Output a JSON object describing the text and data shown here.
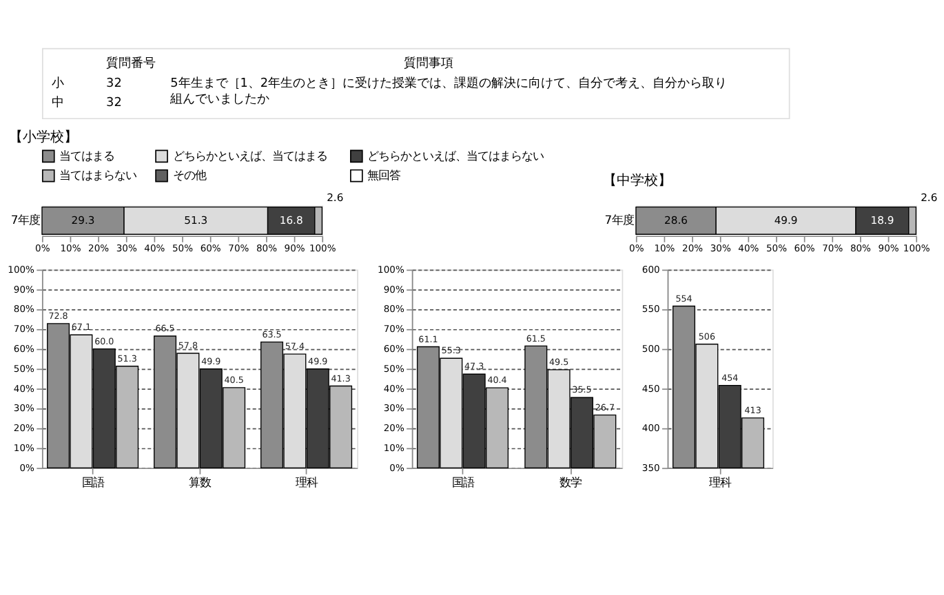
{
  "chart_data": [
    {
      "type": "other",
      "annotations": [
        "質問番号",
        "質問事項",
        "小",
        "32",
        "中",
        "32",
        "5年生まで［1、2年生のとき］に受けた授業では、課題の解決に向けて、自分で考え、自分から取り組んでいましたか"
      ]
    },
    {
      "type": "bar",
      "orientation": "horizontal",
      "stacked": true,
      "title": "【小学校】",
      "categories": [
        "7年度"
      ],
      "legend": "top",
      "data_labels": true,
      "series": [
        {
          "name": "当てはまる",
          "color": "#8c8c8c",
          "values": [
            29.3
          ]
        },
        {
          "name": "どちらかといえば、当てはまる",
          "color": "#dcdcdc",
          "values": [
            51.3
          ]
        },
        {
          "name": "どちらかといえば、当てはまらない",
          "color": "#404040",
          "values": [
            16.8
          ]
        },
        {
          "name": "当てはまらない",
          "color": "#b8b8b8",
          "values": [
            2.6
          ]
        },
        {
          "name": "その他",
          "color": "#606060",
          "values": [
            null
          ]
        },
        {
          "name": "無回答",
          "color": "#ffffff",
          "values": [
            null
          ]
        }
      ],
      "xlim": [
        0,
        100
      ],
      "xticks": [
        {
          "value": 0,
          "label": "0%"
        },
        {
          "value": 10,
          "label": "10%"
        },
        {
          "value": 20,
          "label": "20%"
        },
        {
          "value": 30,
          "label": "30%"
        },
        {
          "value": 40,
          "label": "40%"
        },
        {
          "value": 50,
          "label": "50%"
        },
        {
          "value": 60,
          "label": "60%"
        },
        {
          "value": 70,
          "label": "70%"
        },
        {
          "value": 80,
          "label": "80%"
        },
        {
          "value": 90,
          "label": "90%"
        },
        {
          "value": 100,
          "label": "100%"
        }
      ]
    },
    {
      "type": "bar",
      "orientation": "horizontal",
      "stacked": true,
      "title": "【中学校】",
      "categories": [
        "7年度"
      ],
      "data_labels": true,
      "series": [
        {
          "color": "#8c8c8c",
          "values": [
            28.6
          ]
        },
        {
          "color": "#dcdcdc",
          "values": [
            49.9
          ]
        },
        {
          "color": "#404040",
          "values": [
            18.9
          ]
        },
        {
          "color": "#b8b8b8",
          "values": [
            2.6
          ]
        }
      ],
      "xlim": [
        0,
        100
      ],
      "xticks": [
        {
          "value": 0,
          "label": "0%"
        },
        {
          "value": 10,
          "label": "10%"
        },
        {
          "value": 20,
          "label": "20%"
        },
        {
          "value": 30,
          "label": "30%"
        },
        {
          "value": 40,
          "label": "40%"
        },
        {
          "value": 50,
          "label": "50%"
        },
        {
          "value": 60,
          "label": "60%"
        },
        {
          "value": 70,
          "label": "70%"
        },
        {
          "value": 80,
          "label": "80%"
        },
        {
          "value": 90,
          "label": "90%"
        },
        {
          "value": 100,
          "label": "100%"
        }
      ]
    },
    {
      "type": "bar",
      "categories": [
        "国語",
        "算数",
        "理科"
      ],
      "data_labels": true,
      "grid": "y",
      "series": [
        {
          "color": "#8c8c8c",
          "values": [
            72.8,
            66.5,
            63.5
          ]
        },
        {
          "color": "#dcdcdc",
          "values": [
            67.1,
            57.8,
            57.4
          ]
        },
        {
          "color": "#404040",
          "values": [
            60.0,
            49.9,
            49.9
          ],
          "value_labels": [
            "60.0",
            "49.9",
            "49.9"
          ]
        },
        {
          "color": "#b8b8b8",
          "values": [
            51.3,
            40.5,
            41.3
          ]
        }
      ],
      "ylim": [
        0,
        100
      ],
      "yticks": [
        {
          "value": 0,
          "label": "0%"
        },
        {
          "value": 10,
          "label": "10%"
        },
        {
          "value": 20,
          "label": "20%"
        },
        {
          "value": 30,
          "label": "30%"
        },
        {
          "value": 40,
          "label": "40%"
        },
        {
          "value": 50,
          "label": "50%"
        },
        {
          "value": 60,
          "label": "60%"
        },
        {
          "value": 70,
          "label": "70%"
        },
        {
          "value": 80,
          "label": "80%"
        },
        {
          "value": 90,
          "label": "90%"
        },
        {
          "value": 100,
          "label": "100%"
        }
      ]
    },
    {
      "type": "bar",
      "categories": [
        "国語",
        "数学"
      ],
      "data_labels": true,
      "grid": "y",
      "series": [
        {
          "color": "#8c8c8c",
          "values": [
            61.1,
            61.5
          ]
        },
        {
          "color": "#dcdcdc",
          "values": [
            55.3,
            49.5
          ]
        },
        {
          "color": "#404040",
          "values": [
            47.3,
            35.5
          ]
        },
        {
          "color": "#b8b8b8",
          "values": [
            40.4,
            26.7
          ]
        }
      ],
      "ylim": [
        0,
        100
      ],
      "yticks": [
        {
          "value": 0,
          "label": "0%"
        },
        {
          "value": 10,
          "label": "10%"
        },
        {
          "value": 20,
          "label": "20%"
        },
        {
          "value": 30,
          "label": "30%"
        },
        {
          "value": 40,
          "label": "40%"
        },
        {
          "value": 50,
          "label": "50%"
        },
        {
          "value": 60,
          "label": "60%"
        },
        {
          "value": 70,
          "label": "70%"
        },
        {
          "value": 80,
          "label": "80%"
        },
        {
          "value": 90,
          "label": "90%"
        },
        {
          "value": 100,
          "label": "100%"
        }
      ]
    },
    {
      "type": "bar",
      "categories": [
        "理科"
      ],
      "data_labels": true,
      "grid": "y",
      "series": [
        {
          "color": "#8c8c8c",
          "values": [
            554
          ]
        },
        {
          "color": "#dcdcdc",
          "values": [
            506
          ]
        },
        {
          "color": "#404040",
          "values": [
            454
          ]
        },
        {
          "color": "#b8b8b8",
          "values": [
            413
          ]
        }
      ],
      "ylim": [
        350,
        600
      ],
      "yticks": [
        350,
        400,
        450,
        500,
        550,
        600
      ]
    }
  ]
}
